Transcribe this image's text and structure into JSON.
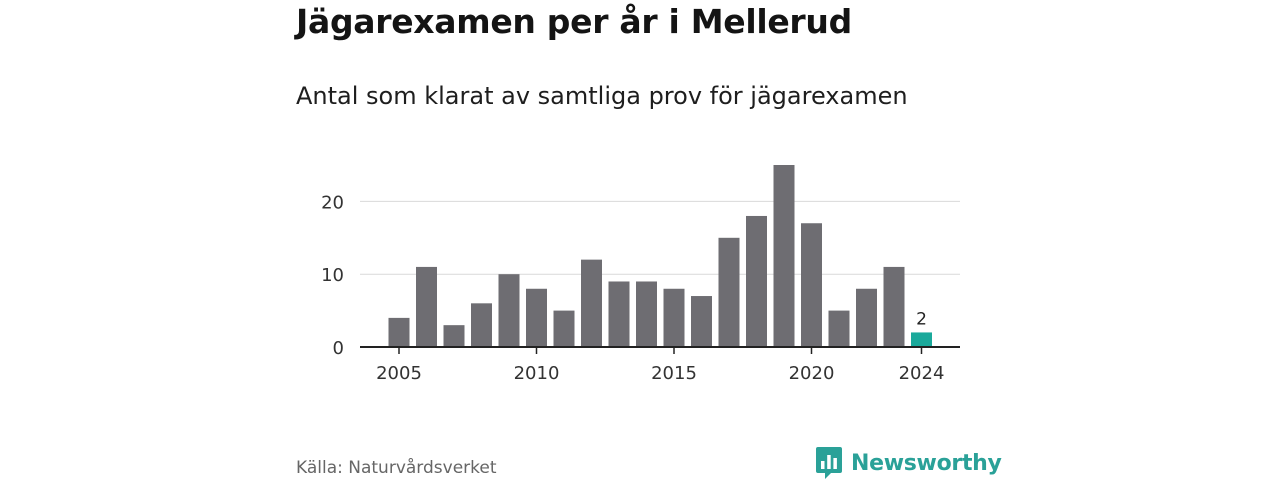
{
  "title": "Jägarexamen per år i Mellerud",
  "subtitle": "Antal som klarat av samtliga prov för jägarexamen",
  "source": "Källa: Naturvårdsverket",
  "brand": {
    "name": "Newsworthy",
    "logo_icon": "newsworthy-logo-icon"
  },
  "colors": {
    "bar": "#6e6d72",
    "highlight": "#1aa99b",
    "grid": "#d9d9d9",
    "axis": "#222222"
  },
  "chart_data": {
    "type": "bar",
    "title": "Jägarexamen per år i Mellerud",
    "subtitle": "Antal som klarat av samtliga prov för jägarexamen",
    "x": [
      2005,
      2006,
      2007,
      2008,
      2009,
      2010,
      2011,
      2012,
      2013,
      2014,
      2015,
      2016,
      2017,
      2018,
      2019,
      2020,
      2021,
      2022,
      2023,
      2024
    ],
    "values": [
      4,
      11,
      3,
      6,
      10,
      8,
      5,
      12,
      9,
      9,
      8,
      7,
      15,
      18,
      25,
      17,
      5,
      8,
      11,
      2
    ],
    "x_ticks": [
      "2005",
      "2010",
      "2015",
      "2020",
      "2024"
    ],
    "y_ticks": [
      "0",
      "10",
      "20"
    ],
    "ylim": [
      0,
      25
    ],
    "highlight_year": 2024,
    "highlight_label": "2",
    "grid": true,
    "xlabel": "",
    "ylabel": ""
  }
}
